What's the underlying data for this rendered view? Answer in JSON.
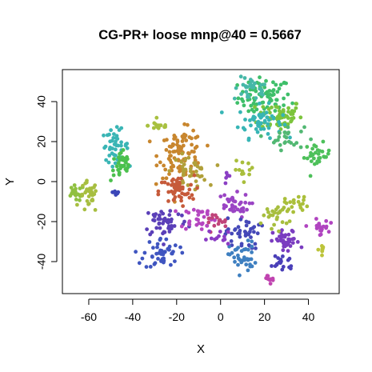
{
  "chart_data": {
    "type": "scatter",
    "title": "CG-PR+ loose mnp@40 = 0.5667",
    "xlabel": "X",
    "ylabel": "Y",
    "xlim": [
      -72,
      54
    ],
    "ylim": [
      -56,
      56
    ],
    "xticks": [
      -60,
      -40,
      -20,
      0,
      20,
      40
    ],
    "yticks": [
      -40,
      -20,
      0,
      20,
      40
    ],
    "grid": false,
    "legend": "none",
    "clusters": [
      {
        "cx": 20,
        "cy": 42,
        "sx": 6,
        "sy": 5,
        "n": 80,
        "color": "#3fbf6a"
      },
      {
        "cx": 14,
        "cy": 46,
        "sx": 4,
        "sy": 3,
        "n": 30,
        "color": "#46b8a8"
      },
      {
        "cx": 27,
        "cy": 33,
        "sx": 5,
        "sy": 4,
        "n": 60,
        "color": "#7cc43c"
      },
      {
        "cx": 18,
        "cy": 30,
        "sx": 5,
        "sy": 4,
        "n": 50,
        "color": "#37b5b5"
      },
      {
        "cx": 30,
        "cy": 22,
        "sx": 4,
        "sy": 3,
        "n": 25,
        "color": "#52b873"
      },
      {
        "cx": 44,
        "cy": 13,
        "sx": 3,
        "sy": 3,
        "n": 30,
        "color": "#4dc05a"
      },
      {
        "cx": -48,
        "cy": 18,
        "sx": 3,
        "sy": 4,
        "n": 45,
        "color": "#3ab5b5"
      },
      {
        "cx": -45,
        "cy": 8,
        "sx": 2.5,
        "sy": 4,
        "n": 35,
        "color": "#4bc04d"
      },
      {
        "cx": -28,
        "cy": 28,
        "sx": 2.5,
        "sy": 1.2,
        "n": 15,
        "color": "#a8c040"
      },
      {
        "cx": -66,
        "cy": -6,
        "sx": 2,
        "sy": 2,
        "n": 20,
        "color": "#8fc040"
      },
      {
        "cx": -60,
        "cy": -8,
        "sx": 2,
        "sy": 4,
        "n": 30,
        "color": "#a7be40"
      },
      {
        "cx": -48,
        "cy": -5,
        "sx": 1.2,
        "sy": 1,
        "n": 8,
        "color": "#3b46b8"
      },
      {
        "cx": -18,
        "cy": 14,
        "sx": 5,
        "sy": 6,
        "n": 95,
        "color": "#c8862e"
      },
      {
        "cx": -14,
        "cy": 5,
        "sx": 4,
        "sy": 4,
        "n": 40,
        "color": "#b0a03a"
      },
      {
        "cx": -20,
        "cy": -5,
        "sx": 4,
        "sy": 4,
        "n": 55,
        "color": "#c65a3a"
      },
      {
        "cx": -25,
        "cy": -20,
        "sx": 5,
        "sy": 4,
        "n": 50,
        "color": "#5a3fb8"
      },
      {
        "cx": -27,
        "cy": -36,
        "sx": 4,
        "sy": 4,
        "n": 45,
        "color": "#3f55c0"
      },
      {
        "cx": -10,
        "cy": -18,
        "sx": 4,
        "sy": 3,
        "n": 30,
        "color": "#b546c0"
      },
      {
        "cx": 5,
        "cy": -12,
        "sx": 4,
        "sy": 3,
        "n": 35,
        "color": "#9a44c4"
      },
      {
        "cx": 10,
        "cy": -26,
        "sx": 4,
        "sy": 4,
        "n": 40,
        "color": "#4548b8"
      },
      {
        "cx": 10,
        "cy": -38,
        "sx": 3,
        "sy": 4,
        "n": 40,
        "color": "#3e7fc0"
      },
      {
        "cx": 30,
        "cy": -30,
        "sx": 3,
        "sy": 3,
        "n": 40,
        "color": "#7a3cc0"
      },
      {
        "cx": 28,
        "cy": -40,
        "sx": 3,
        "sy": 2.5,
        "n": 20,
        "color": "#4a3fb8"
      },
      {
        "cx": 25,
        "cy": -17,
        "sx": 3,
        "sy": 3,
        "n": 25,
        "color": "#a7be3e"
      },
      {
        "cx": 35,
        "cy": -11,
        "sx": 3,
        "sy": 2,
        "n": 20,
        "color": "#aabf3a"
      },
      {
        "cx": 45,
        "cy": -23,
        "sx": 2,
        "sy": 2,
        "n": 20,
        "color": "#b044c0"
      },
      {
        "cx": 46,
        "cy": -34,
        "sx": 1.2,
        "sy": 1.2,
        "n": 8,
        "color": "#bcc43a"
      },
      {
        "cx": 22,
        "cy": -48,
        "sx": 2,
        "sy": 1.5,
        "n": 10,
        "color": "#c044b0"
      },
      {
        "cx": 12,
        "cy": 6,
        "sx": 3,
        "sy": 2,
        "n": 12,
        "color": "#a9be3c"
      },
      {
        "cx": -3,
        "cy": -20,
        "sx": 3,
        "sy": 2,
        "n": 15,
        "color": "#c0447a"
      },
      {
        "cx": 0,
        "cy": -28,
        "sx": 3,
        "sy": 2,
        "n": 12,
        "color": "#8a3cc4"
      },
      {
        "cx": 4,
        "cy": 2,
        "sx": 2,
        "sy": 2,
        "n": 6,
        "color": "#8b40c4"
      }
    ]
  }
}
